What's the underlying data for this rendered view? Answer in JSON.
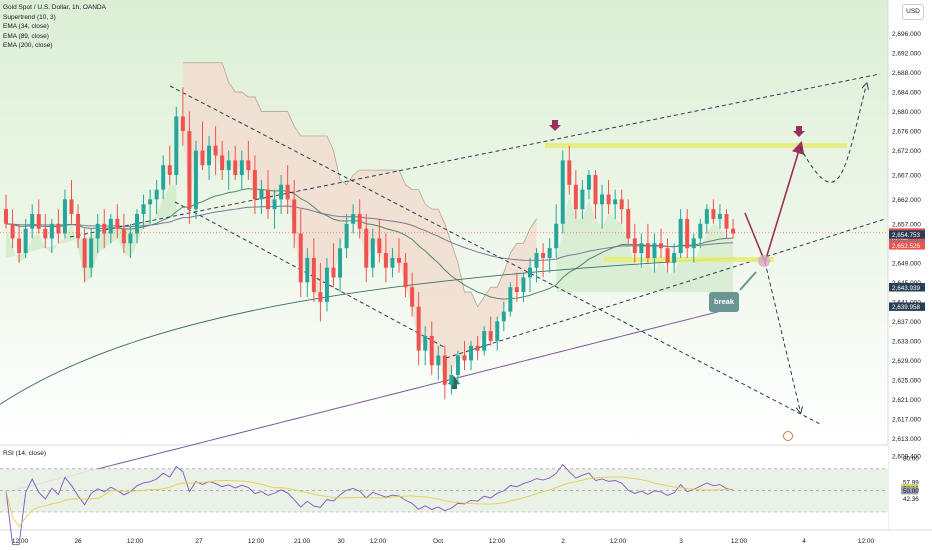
{
  "legend": {
    "title": "Gold Spot / U.S. Dollar, 1h, OANDA",
    "indicators": [
      "Supertrend (10, 3)",
      "EMA (34, close)",
      "EMA (89, close)",
      "EMA (200, close)"
    ]
  },
  "currency": "USD",
  "rsi": {
    "title": "RSI (14, close)",
    "levels": [
      "80.00",
      "57.99",
      "52.06",
      "50.00",
      "42.36"
    ],
    "upper_band": 70,
    "lower_band": 30
  },
  "annotations": {
    "break_label": "break"
  },
  "colors": {
    "bull": "#26a69a",
    "bear": "#ef5350",
    "top_green": "#e0f2dc",
    "bottom_white": "#ffffff",
    "supertrend_fill": "#f1ddd0",
    "support_highlight": "#e6ec7c",
    "arrow": "#9c2f5d",
    "ema34": "#4c8a6a",
    "ema89": "#80739a",
    "ema200": "#7a5a9b",
    "dashed": "#2b3d4f"
  },
  "chart_data": {
    "type": "candlestick",
    "title": "Gold Spot / U.S. Dollar, 1h, OANDA",
    "y_axis_unit": "USD",
    "y_ticks": [
      "2,696.000",
      "2,692.000",
      "2,688.000",
      "2,684.000",
      "2,680.000",
      "2,676.000",
      "2,672.000",
      "2,667.000",
      "2,662.000",
      "2,657.000",
      "2,649.000",
      "2,645.000",
      "2,641.000",
      "2,637.000",
      "2,633.000",
      "2,629.000",
      "2,625.000",
      "2,621.000",
      "2,617.000",
      "2,613.000",
      "2,609.400"
    ],
    "price_badges": [
      {
        "label": "2,655.150",
        "sub": "(4:49)",
        "value": 2655.15,
        "color": "#ef5350"
      },
      {
        "label": "2,654.753",
        "value": 2654.75,
        "color": "#2a3f56"
      },
      {
        "label": "2,652.745",
        "value": 2652.75,
        "color": "#6e7e8f"
      },
      {
        "label": "2,652.526",
        "value": 2652.53,
        "color": "#ef5350"
      },
      {
        "label": "2,643.939",
        "value": 2643.94,
        "color": "#2a3f56"
      },
      {
        "label": "2,639.958",
        "value": 2639.96,
        "color": "#2a3f56"
      }
    ],
    "x_ticks": [
      "12:00",
      "26",
      "12:00",
      "27",
      "12:00",
      "21:00",
      "30",
      "12:00",
      "Oct",
      "12:00",
      "2",
      "12:00",
      "3",
      "12:00",
      "4",
      "12:00"
    ],
    "y_range": [
      2609.4,
      2700
    ],
    "candles": [
      [
        2660,
        2663,
        2656,
        2657
      ],
      [
        2657,
        2660,
        2652,
        2654
      ],
      [
        2654,
        2657,
        2649,
        2651
      ],
      [
        2651,
        2658,
        2650,
        2656
      ],
      [
        2656,
        2661,
        2654,
        2659
      ],
      [
        2659,
        2662,
        2655,
        2656
      ],
      [
        2656,
        2659,
        2652,
        2654
      ],
      [
        2654,
        2658,
        2651,
        2657
      ],
      [
        2657,
        2660,
        2653,
        2655
      ],
      [
        2655,
        2664,
        2654,
        2662
      ],
      [
        2662,
        2666,
        2657,
        2659
      ],
      [
        2659,
        2661,
        2652,
        2654
      ],
      [
        2654,
        2656,
        2645,
        2648
      ],
      [
        2648,
        2656,
        2646,
        2654
      ],
      [
        2654,
        2659,
        2651,
        2657
      ],
      [
        2657,
        2660,
        2652,
        2655
      ],
      [
        2655,
        2659,
        2653,
        2658
      ],
      [
        2658,
        2661,
        2654,
        2656
      ],
      [
        2656,
        2659,
        2651,
        2653
      ],
      [
        2653,
        2657,
        2650,
        2655
      ],
      [
        2655,
        2660,
        2653,
        2659
      ],
      [
        2659,
        2663,
        2656,
        2661
      ],
      [
        2661,
        2664,
        2657,
        2662
      ],
      [
        2662,
        2666,
        2659,
        2664
      ],
      [
        2664,
        2671,
        2662,
        2669
      ],
      [
        2669,
        2673,
        2665,
        2667
      ],
      [
        2667,
        2681,
        2665,
        2679
      ],
      [
        2679,
        2685,
        2673,
        2676
      ],
      [
        2676,
        2680,
        2657,
        2660
      ],
      [
        2660,
        2674,
        2658,
        2672
      ],
      [
        2672,
        2678,
        2668,
        2669
      ],
      [
        2669,
        2675,
        2666,
        2673
      ],
      [
        2673,
        2677,
        2667,
        2671
      ],
      [
        2671,
        2674,
        2666,
        2668
      ],
      [
        2668,
        2672,
        2664,
        2670
      ],
      [
        2670,
        2673,
        2666,
        2667
      ],
      [
        2667,
        2672,
        2664,
        2670
      ],
      [
        2670,
        2674,
        2666,
        2668
      ],
      [
        2668,
        2671,
        2659,
        2662
      ],
      [
        2662,
        2666,
        2659,
        2664
      ],
      [
        2664,
        2668,
        2658,
        2660
      ],
      [
        2660,
        2664,
        2656,
        2662
      ],
      [
        2662,
        2667,
        2659,
        2665
      ],
      [
        2665,
        2669,
        2659,
        2662
      ],
      [
        2662,
        2666,
        2652,
        2655
      ],
      [
        2655,
        2660,
        2642,
        2645
      ],
      [
        2645,
        2652,
        2642,
        2650
      ],
      [
        2650,
        2654,
        2641,
        2643
      ],
      [
        2643,
        2649,
        2637,
        2641
      ],
      [
        2641,
        2650,
        2639,
        2648
      ],
      [
        2648,
        2653,
        2644,
        2646
      ],
      [
        2646,
        2654,
        2643,
        2652
      ],
      [
        2652,
        2659,
        2650,
        2657
      ],
      [
        2657,
        2661,
        2655,
        2659
      ],
      [
        2659,
        2662,
        2654,
        2656
      ],
      [
        2656,
        2659,
        2645,
        2648
      ],
      [
        2648,
        2656,
        2646,
        2654
      ],
      [
        2654,
        2658,
        2649,
        2651
      ],
      [
        2651,
        2655,
        2645,
        2648
      ],
      [
        2648,
        2652,
        2646,
        2650
      ],
      [
        2650,
        2654,
        2647,
        2649
      ],
      [
        2649,
        2651,
        2642,
        2644
      ],
      [
        2644,
        2647,
        2638,
        2640
      ],
      [
        2640,
        2643,
        2628,
        2631
      ],
      [
        2631,
        2636,
        2628,
        2634
      ],
      [
        2634,
        2637,
        2626,
        2628
      ],
      [
        2628,
        2632,
        2625,
        2630
      ],
      [
        2630,
        2632,
        2621,
        2624
      ],
      [
        2624,
        2628,
        2622,
        2626
      ],
      [
        2626,
        2631,
        2624,
        2630
      ],
      [
        2630,
        2633,
        2627,
        2629
      ],
      [
        2629,
        2633,
        2627,
        2632
      ],
      [
        2632,
        2634,
        2629,
        2631
      ],
      [
        2631,
        2636,
        2630,
        2635
      ],
      [
        2635,
        2638,
        2632,
        2633
      ],
      [
        2633,
        2638,
        2631,
        2637
      ],
      [
        2637,
        2641,
        2635,
        2639
      ],
      [
        2639,
        2645,
        2638,
        2644
      ],
      [
        2644,
        2647,
        2641,
        2643
      ],
      [
        2643,
        2647,
        2641,
        2646
      ],
      [
        2646,
        2650,
        2643,
        2648
      ],
      [
        2648,
        2652,
        2645,
        2651
      ],
      [
        2651,
        2653,
        2646,
        2650
      ],
      [
        2650,
        2654,
        2647,
        2652
      ],
      [
        2652,
        2661,
        2650,
        2657
      ],
      [
        2657,
        2672,
        2655,
        2670
      ],
      [
        2670,
        2673,
        2663,
        2665
      ],
      [
        2665,
        2668,
        2658,
        2660
      ],
      [
        2660,
        2666,
        2658,
        2664
      ],
      [
        2664,
        2668,
        2662,
        2667
      ],
      [
        2667,
        2668,
        2658,
        2661
      ],
      [
        2661,
        2665,
        2656,
        2663
      ],
      [
        2663,
        2666,
        2659,
        2661
      ],
      [
        2661,
        2664,
        2658,
        2662
      ],
      [
        2662,
        2664,
        2657,
        2660
      ],
      [
        2660,
        2662,
        2653,
        2654
      ],
      [
        2654,
        2657,
        2649,
        2651
      ],
      [
        2651,
        2655,
        2648,
        2653
      ],
      [
        2653,
        2657,
        2649,
        2650
      ],
      [
        2650,
        2655,
        2647,
        2653
      ],
      [
        2653,
        2656,
        2650,
        2652
      ],
      [
        2652,
        2654,
        2647,
        2649
      ],
      [
        2649,
        2653,
        2647,
        2651
      ],
      [
        2651,
        2660,
        2650,
        2658
      ],
      [
        2658,
        2660,
        2650,
        2652
      ],
      [
        2652,
        2655,
        2649,
        2654
      ],
      [
        2654,
        2658,
        2652,
        2657
      ],
      [
        2657,
        2661,
        2655,
        2660
      ],
      [
        2660,
        2662,
        2657,
        2658
      ],
      [
        2658,
        2661,
        2656,
        2659
      ],
      [
        2659,
        2660,
        2654,
        2656
      ],
      [
        2656,
        2658,
        2654,
        2655
      ]
    ]
  }
}
